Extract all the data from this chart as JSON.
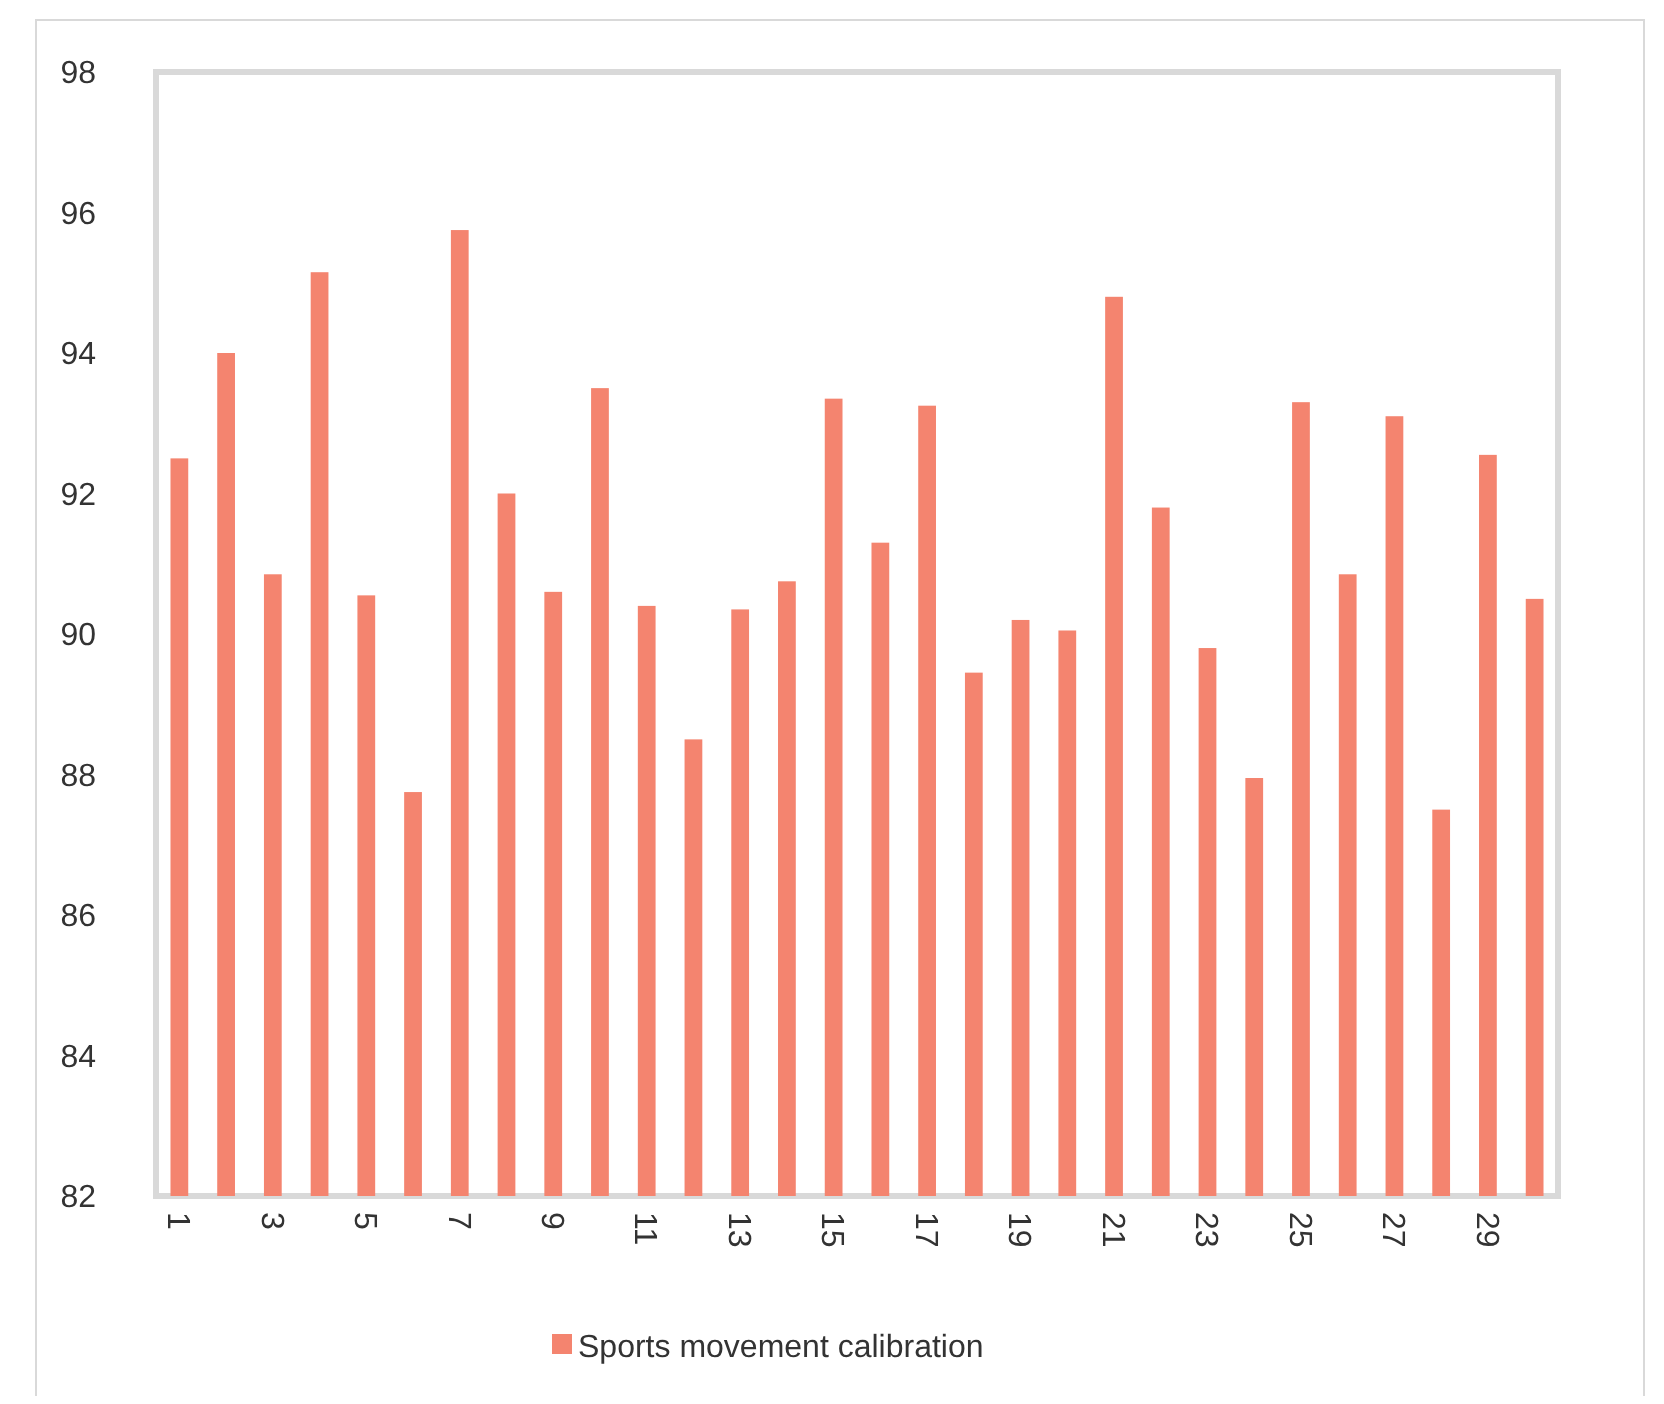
{
  "chart_data": {
    "type": "bar",
    "categories": [
      "1",
      null,
      "3",
      null,
      "5",
      null,
      "7",
      null,
      "9",
      null,
      "11",
      null,
      "13",
      null,
      "15",
      null,
      "17",
      null,
      "19",
      null,
      "21",
      null,
      "23",
      null,
      "25",
      null,
      "27",
      null,
      "29",
      null
    ],
    "series": [
      {
        "name": "Sports movement calibration",
        "color": "#f4846f",
        "values": [
          92.5,
          94.0,
          90.85,
          95.15,
          90.55,
          87.75,
          95.75,
          92.0,
          90.6,
          93.5,
          90.4,
          88.5,
          90.35,
          90.75,
          93.35,
          91.3,
          93.25,
          89.45,
          90.2,
          90.05,
          94.8,
          91.8,
          89.8,
          87.95,
          93.3,
          90.85,
          93.1,
          87.5,
          92.55,
          90.5
        ]
      }
    ],
    "ylim": [
      82,
      98
    ],
    "yticks": [
      82,
      84,
      86,
      88,
      90,
      92,
      94,
      96,
      98
    ],
    "grid": false,
    "legend": "bottom"
  }
}
